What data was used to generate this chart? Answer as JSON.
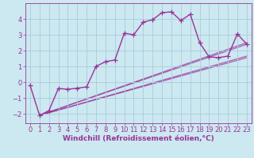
{
  "bg_color": "#cce8f0",
  "grid_color": "#aaccdd",
  "line_color": "#993399",
  "marker": "+",
  "markersize": 4,
  "linewidth": 1.0,
  "xlabel": "Windchill (Refroidissement éolien,°C)",
  "xlabel_fontsize": 6.5,
  "tick_fontsize": 6,
  "xlim": [
    -0.5,
    23.5
  ],
  "ylim": [
    -2.6,
    5.0
  ],
  "yticks": [
    -2,
    -1,
    0,
    1,
    2,
    3,
    4
  ],
  "xticks": [
    0,
    1,
    2,
    3,
    4,
    5,
    6,
    7,
    8,
    9,
    10,
    11,
    12,
    13,
    14,
    15,
    16,
    17,
    18,
    19,
    20,
    21,
    22,
    23
  ],
  "series": [
    [
      0,
      -0.2
    ],
    [
      1,
      -2.1
    ],
    [
      2,
      -1.8
    ],
    [
      3,
      -0.4
    ],
    [
      4,
      -0.45
    ],
    [
      5,
      -0.38
    ],
    [
      6,
      -0.3
    ],
    [
      7,
      1.0
    ],
    [
      8,
      1.3
    ],
    [
      9,
      1.4
    ],
    [
      10,
      3.1
    ],
    [
      11,
      3.0
    ],
    [
      12,
      3.8
    ],
    [
      13,
      3.95
    ],
    [
      14,
      4.4
    ],
    [
      15,
      4.45
    ],
    [
      16,
      3.9
    ],
    [
      17,
      4.3
    ],
    [
      18,
      2.5
    ],
    [
      19,
      1.6
    ],
    [
      20,
      1.55
    ],
    [
      21,
      1.65
    ],
    [
      22,
      3.05
    ],
    [
      23,
      2.4
    ]
  ],
  "regression_lines": [
    {
      "x": [
        1,
        23
      ],
      "y": [
        -2.1,
        1.55
      ]
    },
    {
      "x": [
        1,
        23
      ],
      "y": [
        -2.1,
        1.65
      ]
    },
    {
      "x": [
        1,
        23
      ],
      "y": [
        -2.1,
        2.4
      ]
    },
    {
      "x": [
        1,
        23
      ],
      "y": [
        -2.1,
        2.5
      ]
    }
  ]
}
